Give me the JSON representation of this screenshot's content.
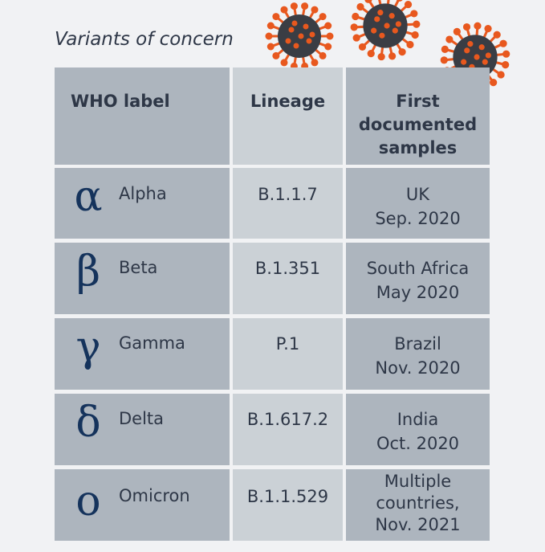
{
  "title": "Variants of concern",
  "headers": {
    "who_label": "WHO label",
    "lineage": "Lineage",
    "first_samples": [
      "First",
      "documented",
      "samples"
    ]
  },
  "rows": [
    {
      "symbol": "α",
      "name": "Alpha",
      "lineage": "B.1.1.7",
      "samples": [
        "UK",
        "Sep. 2020"
      ]
    },
    {
      "symbol": "β",
      "name": "Beta",
      "lineage": "B.1.351",
      "samples": [
        "South Africa",
        "May 2020"
      ]
    },
    {
      "symbol": "γ",
      "name": "Gamma",
      "lineage": "P.1",
      "samples": [
        "Brazil",
        "Nov. 2020"
      ]
    },
    {
      "symbol": "δ",
      "name": "Delta",
      "lineage": "B.1.617.2",
      "samples": [
        "India",
        "Oct. 2020"
      ]
    },
    {
      "symbol": "ο",
      "name": "Omicron",
      "lineage": "B.1.1.529",
      "samples": [
        "Multiple",
        "countries,",
        "Nov. 2021"
      ]
    }
  ],
  "colors": {
    "background": "#f1f2f4",
    "cell_dark": "#adb5be",
    "cell_light": "#cbd1d6",
    "greek": "#15335c",
    "virus_body": "#3a3d44",
    "virus_spike": "#e8581e"
  },
  "icons": [
    "coronavirus-icon",
    "coronavirus-icon",
    "coronavirus-icon"
  ]
}
